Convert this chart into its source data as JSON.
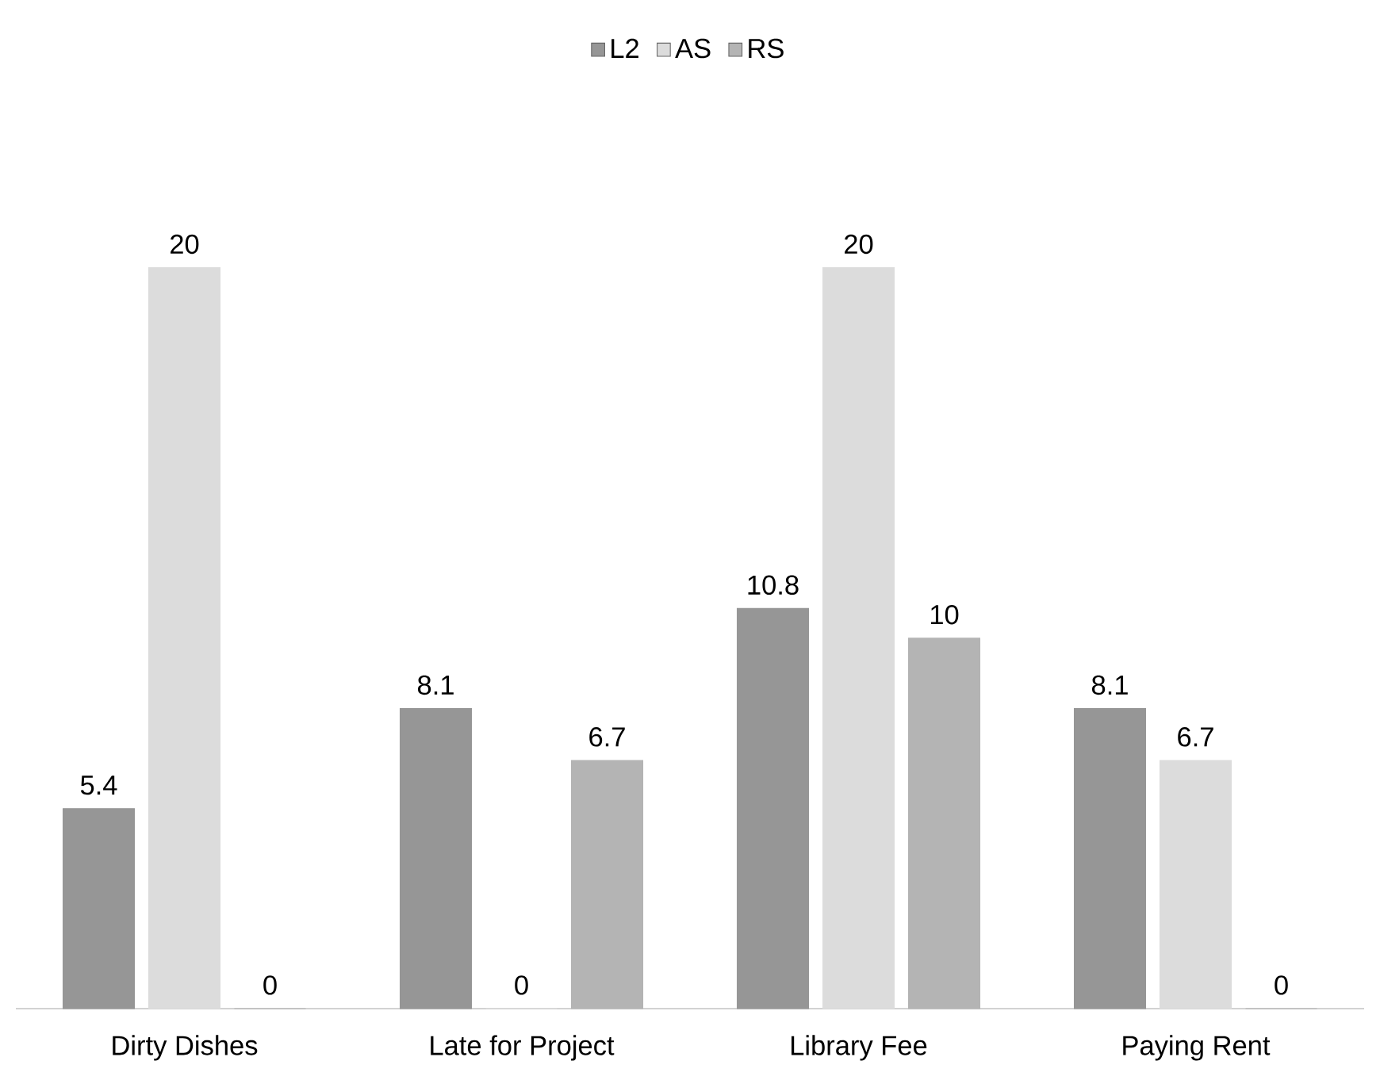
{
  "chart_data": {
    "type": "bar",
    "categories": [
      "Dirty Dishes",
      "Late for Project",
      "Library Fee",
      "Paying Rent"
    ],
    "series": [
      {
        "name": "L2",
        "color": "#969696",
        "values": [
          5.4,
          8.1,
          10.8,
          8.1
        ]
      },
      {
        "name": "AS",
        "color": "#dcdcdc",
        "values": [
          20,
          0,
          20,
          6.7
        ]
      },
      {
        "name": "RS",
        "color": "#b4b4b4",
        "values": [
          0,
          6.7,
          10,
          0
        ]
      }
    ],
    "data_labels": true,
    "legend": "top"
  }
}
